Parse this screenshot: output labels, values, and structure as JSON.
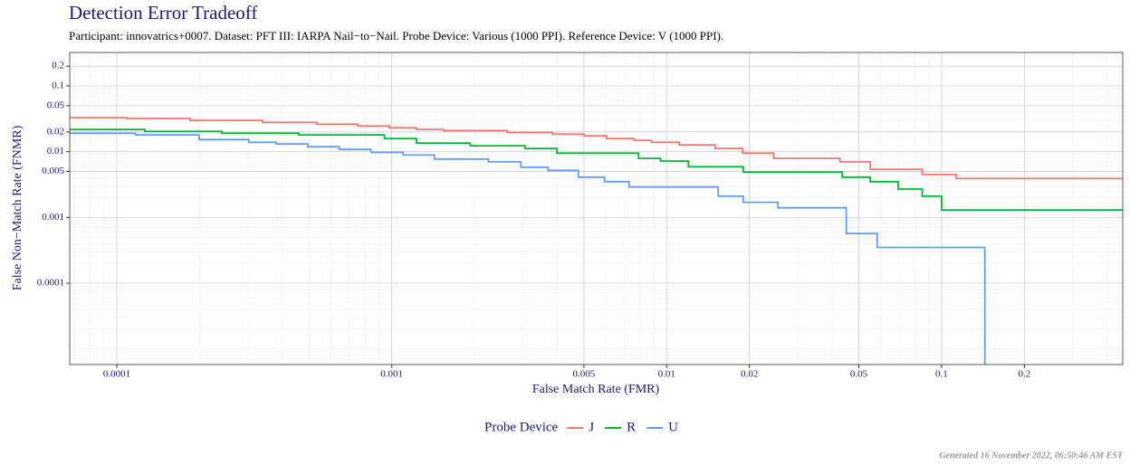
{
  "chart_data": {
    "type": "step",
    "title": "Detection Error Tradeoff",
    "subtitle": "Participant: innovatrics+0007. Dataset: PFT III: IARPA Nail−to−Nail. Probe Device: Various (1000 PPI). Reference Device: V (1000 PPI).",
    "x_label": "False Match Rate (FMR)",
    "y_label": "False Non−Match Rate (FNMR)",
    "legend_title": "Probe Device",
    "footer": "Generated 16 November 2022, 06:50:46 AM EST",
    "xscale": "log",
    "yscale": "log",
    "grid": true,
    "xlim": [
      6.74e-05,
      0.456
    ],
    "ylim": [
      5.78e-06,
      0.323
    ],
    "xticks": [
      0.0001,
      0.001,
      0.005,
      0.01,
      0.02,
      0.05,
      0.1,
      0.2
    ],
    "yticks": [
      0.0001,
      0.001,
      0.005,
      0.01,
      0.02,
      0.05,
      0.1,
      0.2
    ],
    "series": [
      {
        "name": "J",
        "color": "#f8766d",
        "x": [
          6.74e-05,
          0.0001087,
          0.000185,
          0.000339,
          0.000534,
          0.000752,
          0.00098,
          0.00123,
          0.00154,
          0.00263,
          0.00384,
          0.005,
          0.00605,
          0.0076,
          0.0088,
          0.0111,
          0.015,
          0.0189,
          0.0245,
          0.0427,
          0.055,
          0.085,
          0.113
        ],
        "values": [
          0.033,
          0.032,
          0.0298,
          0.0279,
          0.0262,
          0.0246,
          0.0231,
          0.0217,
          0.021,
          0.0197,
          0.0185,
          0.0174,
          0.0158,
          0.0149,
          0.0139,
          0.0127,
          0.0112,
          0.0095,
          0.0079,
          0.007,
          0.0054,
          0.0045,
          0.0039
        ]
      },
      {
        "name": "R",
        "color": "#00ba38",
        "x": [
          6.74e-05,
          0.0001265,
          0.000241,
          0.000459,
          0.00094,
          0.00123,
          0.00193,
          0.00305,
          0.00399,
          0.0079,
          0.0095,
          0.012,
          0.019,
          0.0435,
          0.055,
          0.0695,
          0.085,
          0.1
        ],
        "values": [
          0.0217,
          0.0203,
          0.0191,
          0.018,
          0.0158,
          0.0135,
          0.0123,
          0.0112,
          0.0095,
          0.0079,
          0.0072,
          0.0059,
          0.0049,
          0.0041,
          0.0035,
          0.0027,
          0.0021,
          0.0013
        ]
      },
      {
        "name": "U",
        "color": "#619cff",
        "x": [
          6.74e-05,
          0.000117,
          0.000199,
          0.000302,
          0.00038,
          0.000495,
          0.000645,
          0.00084,
          0.0011,
          0.00143,
          0.00225,
          0.00295,
          0.0037,
          0.00477,
          0.00594,
          0.0073,
          0.0154,
          0.019,
          0.0254,
          0.045,
          0.0583,
          0.1437
        ],
        "values": [
          0.0191,
          0.018,
          0.0153,
          0.0139,
          0.0131,
          0.0119,
          0.0108,
          0.0098,
          0.0089,
          0.0077,
          0.007,
          0.0058,
          0.0052,
          0.0041,
          0.0035,
          0.0029,
          0.0021,
          0.0017,
          0.0014,
          0.00057,
          0.00035,
          0
        ]
      }
    ]
  }
}
